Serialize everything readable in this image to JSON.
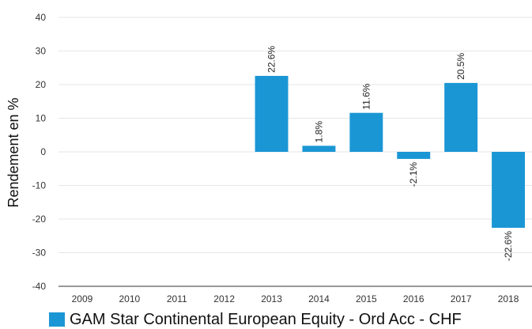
{
  "chart_data": {
    "type": "bar",
    "categories": [
      "2009",
      "2010",
      "2011",
      "2012",
      "2013",
      "2014",
      "2015",
      "2016",
      "2017",
      "2018"
    ],
    "series": [
      {
        "name": "GAM Star Continental European Equity - Ord Acc - CHF",
        "values": [
          null,
          null,
          null,
          null,
          22.6,
          1.8,
          11.6,
          -2.1,
          20.5,
          -22.6
        ],
        "labels": [
          "",
          "",
          "",
          "",
          "22.6%",
          "1.8%",
          "11.6%",
          "-2.1%",
          "20.5%",
          "-22.6%"
        ],
        "color": "#1a96d4"
      }
    ],
    "ylabel": "Rendement en %",
    "xlabel": "",
    "ylim": [
      -40,
      40
    ],
    "yticks": [
      40,
      30,
      20,
      10,
      0,
      -10,
      -20,
      -30,
      -40
    ],
    "grid": true,
    "legend_position": "bottom-left"
  }
}
